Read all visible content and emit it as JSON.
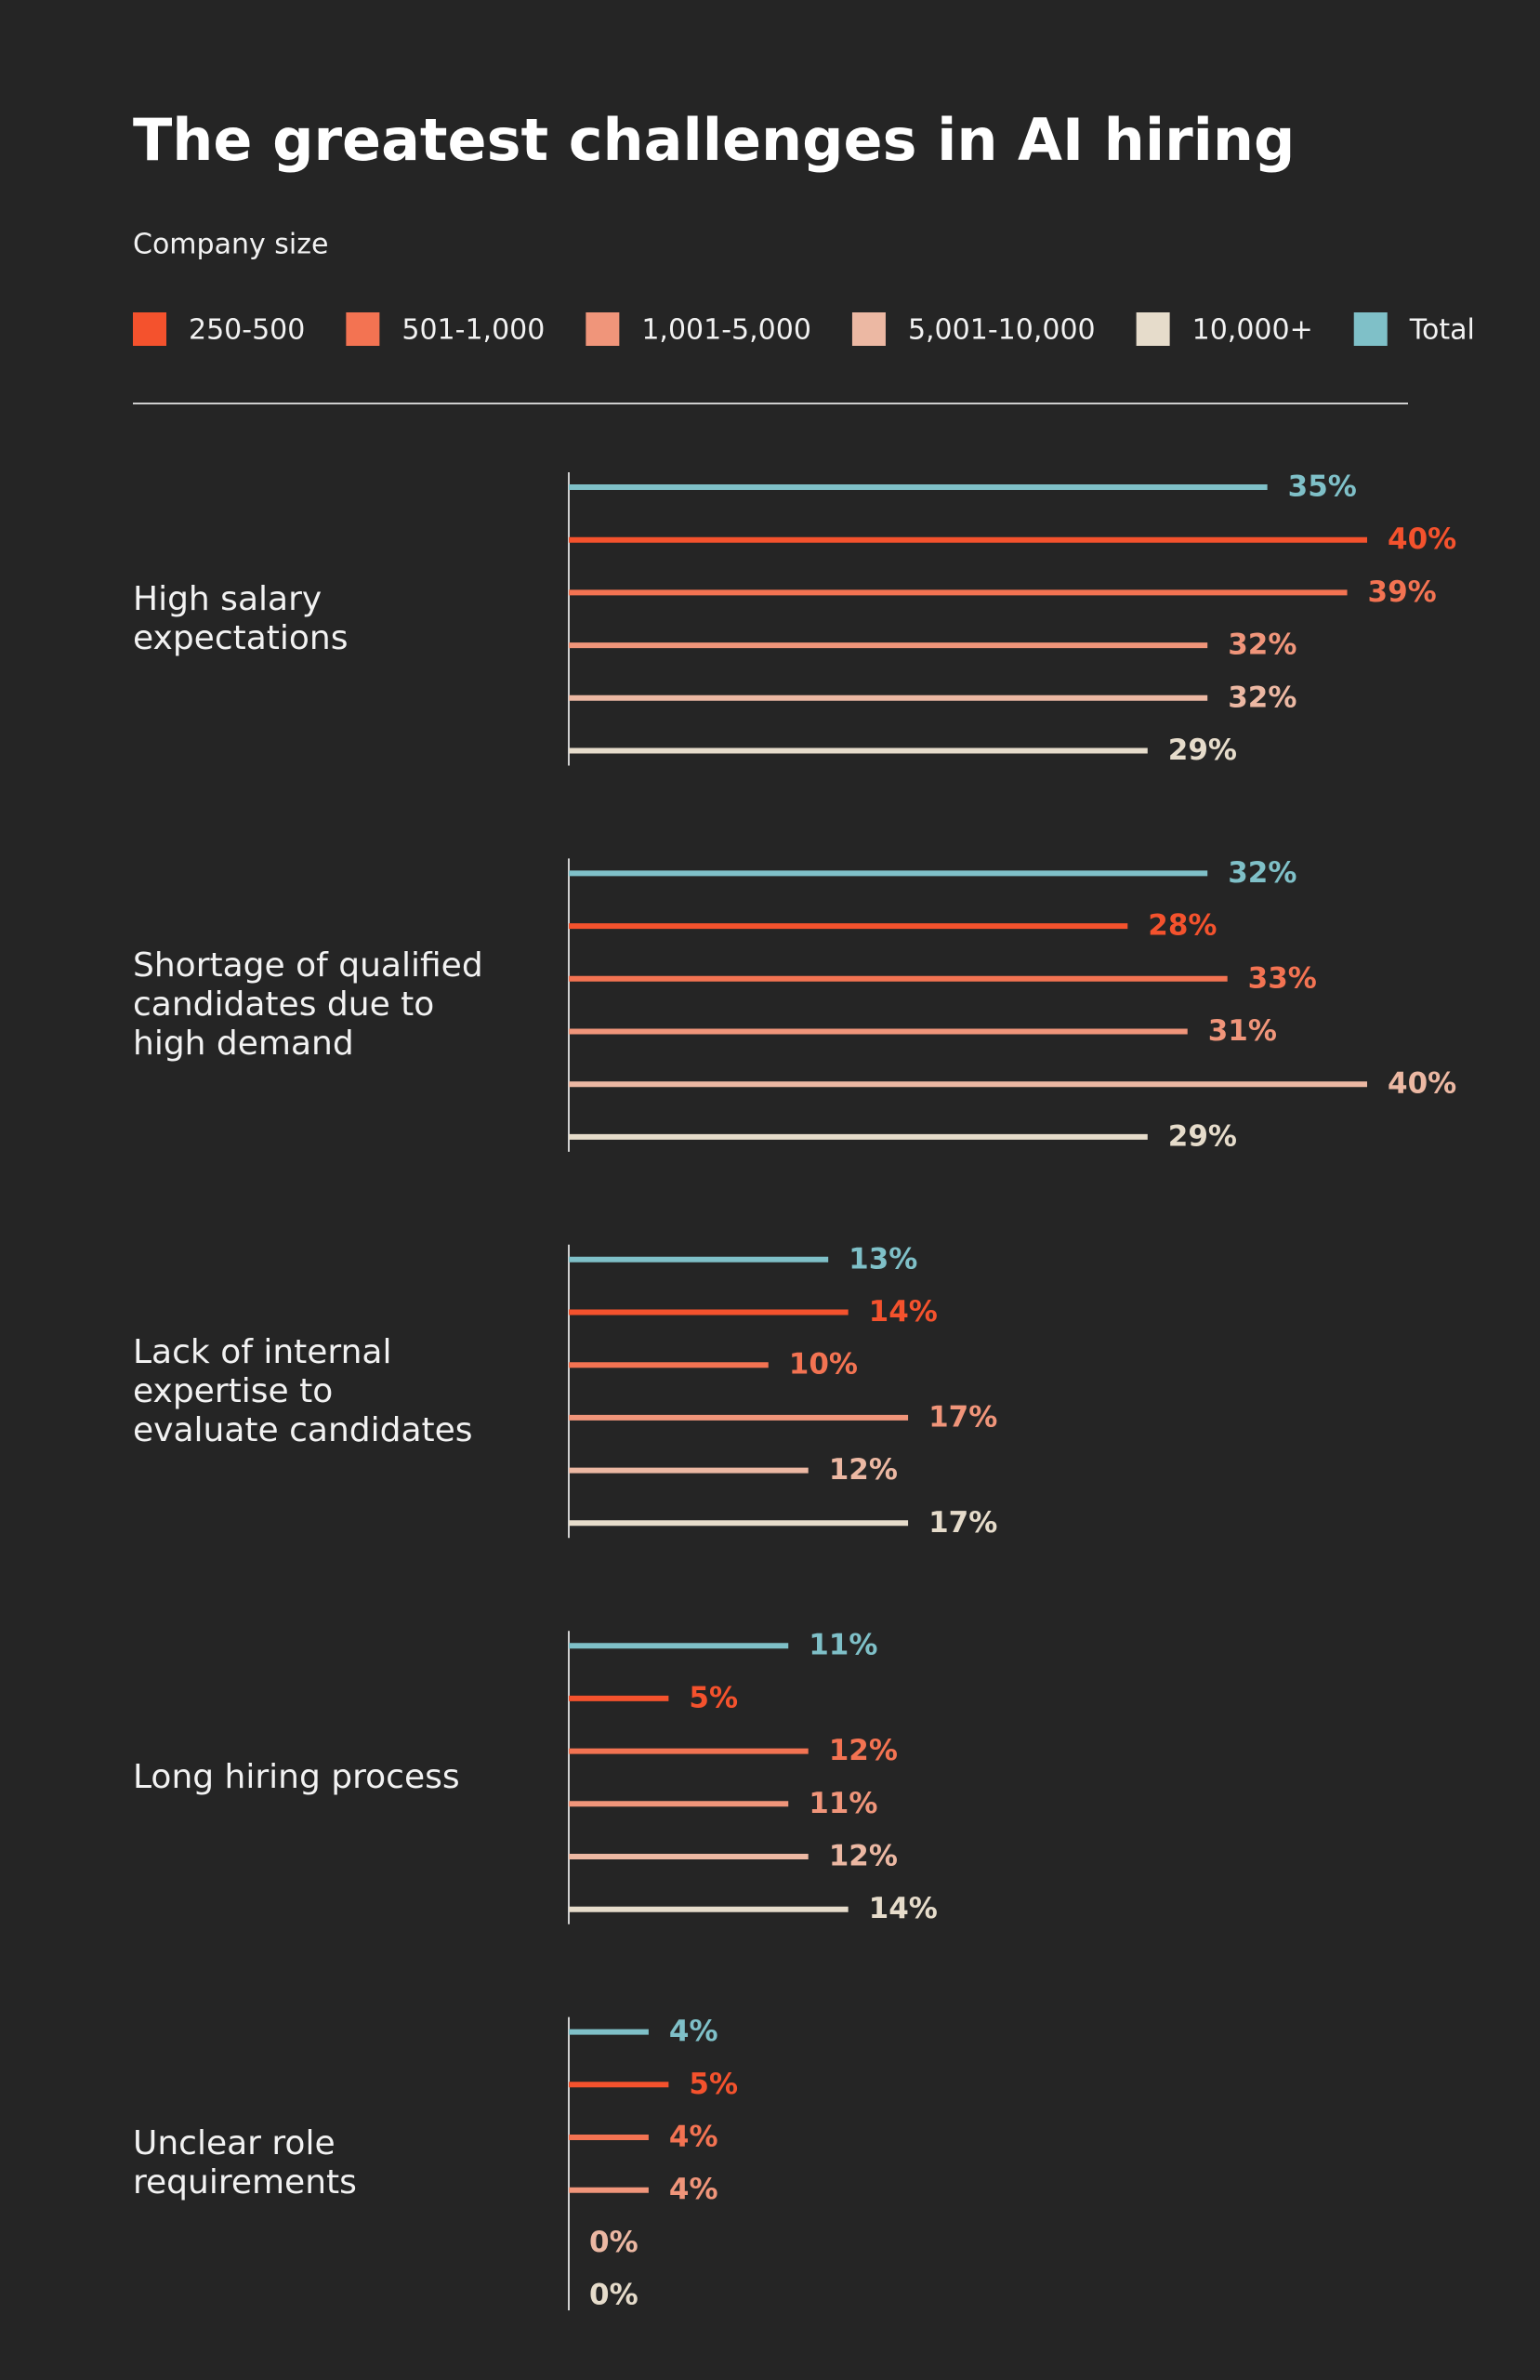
{
  "chart_data": {
    "type": "bar",
    "orientation": "horizontal",
    "title": "The greatest challenges in AI hiring",
    "legend_title": "Company size",
    "categories": [
      "High salary\nexpectations",
      "Shortage of qualified\ncandidates due to\nhigh demand",
      "Lack of internal\nexpertise to\nevaluate candidates",
      "Long hiring process",
      "Unclear role\nrequirements"
    ],
    "legend_order": [
      "250-500",
      "501-1,000",
      "1,001-5,000",
      "5,001-10,000",
      "10,000+",
      "Total"
    ],
    "series": [
      {
        "name": "Total",
        "color": "#7fc0c8",
        "values": [
          35,
          32,
          13,
          11,
          4
        ],
        "value_labels": [
          "35%",
          "32%",
          "13%",
          "11%",
          "4%"
        ]
      },
      {
        "name": "250-500",
        "color": "#f4522d",
        "values": [
          40,
          28,
          14,
          5,
          5
        ],
        "value_labels": [
          "40%",
          "28%",
          "14%",
          "5%",
          "5%"
        ]
      },
      {
        "name": "501-1,000",
        "color": "#f37352",
        "values": [
          39,
          33,
          10,
          12,
          4
        ],
        "value_labels": [
          "39%",
          "33%",
          "10%",
          "12%",
          "4%"
        ]
      },
      {
        "name": "1,001-5,000",
        "color": "#f0957a",
        "values": [
          32,
          31,
          17,
          11,
          4
        ],
        "value_labels": [
          "32%",
          "31%",
          "17%",
          "11%",
          "4%"
        ]
      },
      {
        "name": "5,001-10,000",
        "color": "#ecb8a3",
        "values": [
          32,
          40,
          12,
          12,
          0
        ],
        "value_labels": [
          "32%",
          "40%",
          "12%",
          "12%",
          "0%"
        ]
      },
      {
        "name": "10,000+",
        "color": "#e6dccb",
        "values": [
          29,
          29,
          17,
          14,
          0
        ],
        "value_labels": [
          "29%",
          "29%",
          "17%",
          "14%",
          "0%"
        ]
      }
    ],
    "xlim": [
      0,
      40
    ]
  }
}
